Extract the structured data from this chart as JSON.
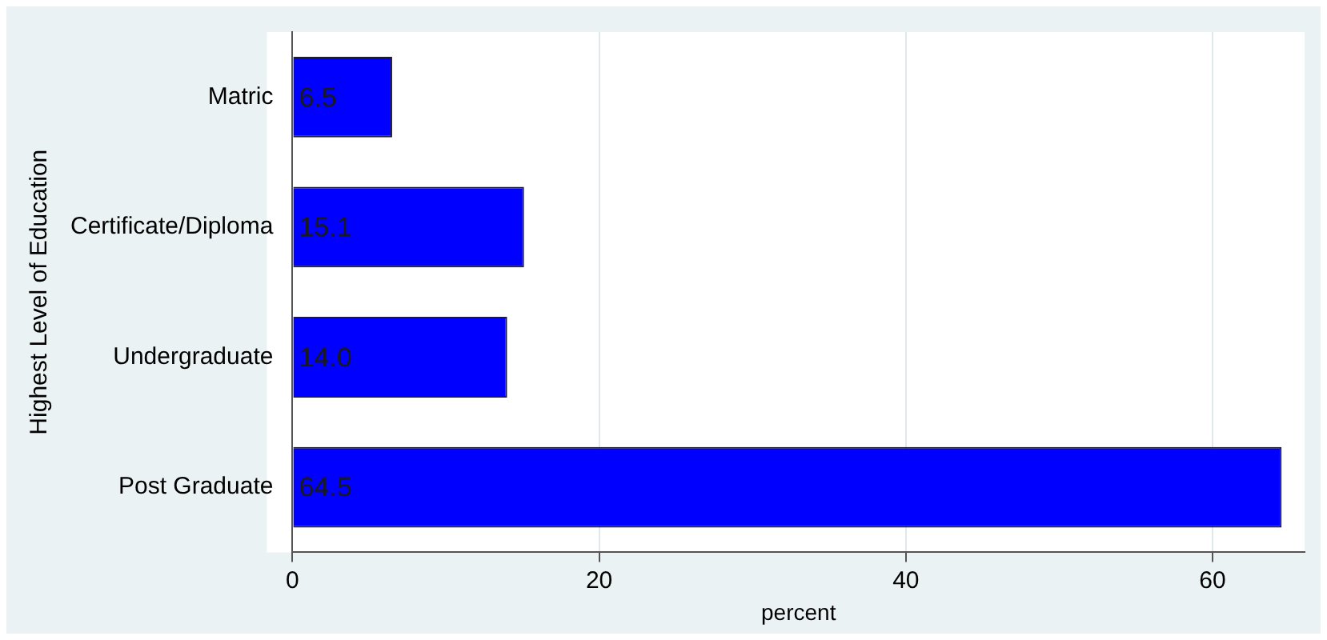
{
  "chart_data": {
    "type": "bar",
    "orientation": "horizontal",
    "categories": [
      "Matric",
      "Certificate/Diploma",
      "Undergraduate",
      "Post Graduate"
    ],
    "values": [
      6.5,
      15.1,
      14.0,
      64.5
    ],
    "value_labels": [
      "6.5",
      "15.1",
      "14.0",
      "64.5"
    ],
    "color": "#0000ff",
    "xlabel": "percent",
    "ylabel": "Highest Level of Education",
    "xlim": [
      0,
      66
    ],
    "xticks": [
      0,
      20,
      40,
      60
    ],
    "grid": "x",
    "legend": false
  }
}
